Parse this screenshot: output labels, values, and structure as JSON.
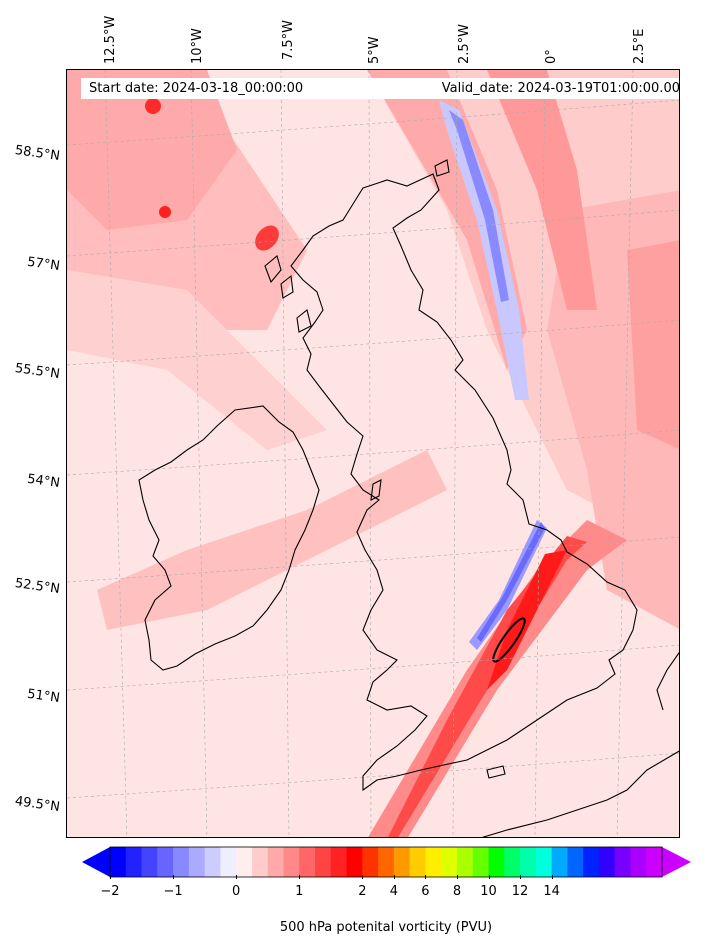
{
  "map": {
    "start_label": "Start date: 2024-03-18_00:00:00",
    "valid_label": "Valid_date: 2024-03-19T01:00:00.00",
    "longitude_labels": [
      "12.5°W",
      "10°W",
      "7.5°W",
      "5°W",
      "2.5°W",
      "0°",
      "2.5°E"
    ],
    "latitude_labels": [
      "58.5°N",
      "57°N",
      "55.5°N",
      "54°N",
      "52.5°N",
      "51°N",
      "49.5°N"
    ],
    "projection": "lambert-conformal",
    "field": "500 hPa potential vorticity",
    "coastline_color": "#000000"
  },
  "colorbar": {
    "label": "500 hPa potenital vorticity (PVU)",
    "tick_labels": [
      "−2",
      "−1",
      "0",
      "1",
      "2",
      "4",
      "6",
      "8",
      "10",
      "12",
      "14"
    ],
    "colors": [
      "#0000ff",
      "#2222ff",
      "#4444ff",
      "#6666ff",
      "#8888ff",
      "#aaaaff",
      "#ccccff",
      "#eeeeff",
      "#ffeeee",
      "#ffcccc",
      "#ffaaaa",
      "#ff8888",
      "#ff6666",
      "#ff4444",
      "#ff2222",
      "#ff0000",
      "#ff3300",
      "#ff6600",
      "#ff9900",
      "#ffcc00",
      "#ffee00",
      "#ddff00",
      "#aaff00",
      "#66ff00",
      "#00ff00",
      "#00ff66",
      "#00ffaa",
      "#00ffdd",
      "#00aaff",
      "#0066ff",
      "#0022ff",
      "#3300ff",
      "#7700ff",
      "#aa00ff",
      "#cc00ff"
    ],
    "under_color": "#0000ff",
    "over_color": "#cc00ff"
  }
}
